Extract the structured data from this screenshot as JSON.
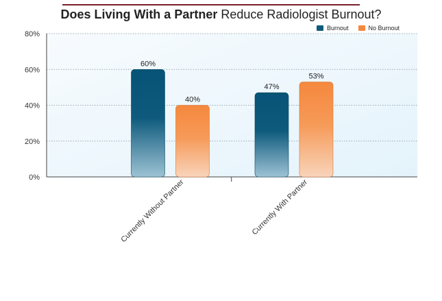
{
  "title": {
    "bold": "Does Living With a Partner",
    "rest": " Reduce Radiologist Burnout?"
  },
  "legend": [
    {
      "label": "Burnout",
      "color": "#0e5a7c"
    },
    {
      "label": "No Burnout",
      "color": "#f5883e"
    }
  ],
  "chart_data": {
    "type": "bar",
    "title": "Does Living With a Partner Reduce Radiologist Burnout?",
    "categories": [
      "Currently Without Partner",
      "Currently With Partner"
    ],
    "series": [
      {
        "name": "Burnout",
        "values": [
          60,
          47
        ],
        "labels": [
          "60%",
          "47%"
        ],
        "color": "#0e5a7c"
      },
      {
        "name": "No Burnout",
        "values": [
          40,
          53
        ],
        "labels": [
          "40%",
          "53%"
        ],
        "color": "#f5883e"
      }
    ],
    "ylim": [
      0,
      80
    ],
    "yticks": [
      0,
      20,
      40,
      60,
      80
    ],
    "ytick_labels": [
      "0%",
      "20%",
      "40%",
      "60%",
      "80%"
    ],
    "grid": true,
    "legend_position": "top-right"
  }
}
